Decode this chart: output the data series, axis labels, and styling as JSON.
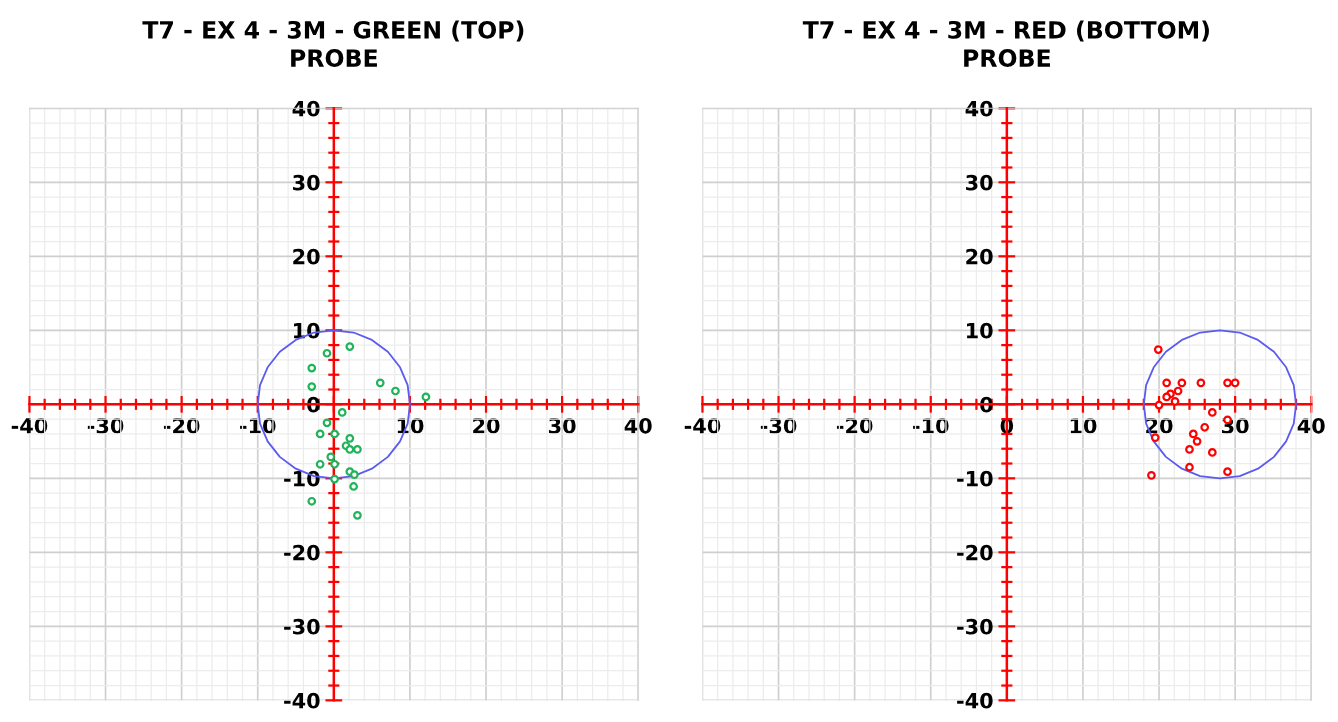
{
  "chart_data": [
    {
      "type": "scatter",
      "title": "T7 - EX 4 - 3M - GREEN (TOP)\nPROBE",
      "xlim": [
        -40,
        40
      ],
      "ylim": [
        -40,
        40
      ],
      "xticks": [
        -40,
        -30,
        -20,
        -10,
        {
          "value": 0,
          "label": null
        },
        10,
        20,
        30,
        40
      ],
      "yticks": [
        -40,
        -30,
        -20,
        -10,
        0,
        10,
        20,
        30,
        40
      ],
      "grid": true,
      "marker": "circle",
      "series": [
        {
          "type": "scatter",
          "color": "#1fb45a",
          "x": [
            2.1,
            -0.9,
            -2.9,
            -2.9,
            6.1,
            8.1,
            12.1,
            1.1,
            -0.9,
            -1.8,
            0.1,
            2.1,
            1.6,
            2.1,
            3.1,
            -0.4,
            -1.8,
            0.1,
            2.1,
            2.7,
            0.1,
            2.6,
            -2.9,
            3.1
          ],
          "values": [
            7.8,
            6.9,
            4.9,
            2.4,
            2.9,
            1.8,
            1.0,
            -1.1,
            -2.5,
            -4.0,
            -4.0,
            -4.6,
            -5.6,
            -6.1,
            -6.1,
            -7.1,
            -8.1,
            -8.1,
            -9.1,
            -9.5,
            -10.1,
            -11.1,
            -13.1,
            -15.0
          ]
        },
        {
          "type": "line",
          "color": "#5b5bf0",
          "marker": "none",
          "x": [
            10,
            9.7,
            8.7,
            7.1,
            5,
            2.6,
            0,
            -2.6,
            -5,
            -7.1,
            -8.7,
            -9.7,
            -10,
            -9.7,
            -8.7,
            -7.1,
            -5,
            -2.6,
            0,
            2.6,
            5,
            7.1,
            8.7,
            9.7,
            10
          ],
          "values": [
            0,
            2.6,
            5,
            7.1,
            8.7,
            9.7,
            10,
            9.7,
            8.7,
            7.1,
            5,
            2.6,
            0,
            -2.6,
            -5,
            -7.1,
            -8.7,
            -9.7,
            -10,
            -9.7,
            -8.7,
            -7.1,
            -5,
            -2.6,
            -0.1
          ]
        }
      ]
    },
    {
      "type": "scatter",
      "title": "T7 - EX 4 - 3M - RED (BOTTOM)\nPROBE",
      "xlim": [
        -40,
        40
      ],
      "ylim": [
        -40,
        40
      ],
      "xticks": [
        -40,
        -30,
        -20,
        -10,
        0,
        10,
        20,
        30,
        40
      ],
      "yticks": [
        -40,
        -30,
        -20,
        -10,
        0,
        10,
        20,
        30,
        40
      ],
      "grid": true,
      "marker": "circle",
      "series": [
        {
          "type": "scatter",
          "color": "#ff0000",
          "x": [
            19.9,
            21.0,
            23.0,
            25.5,
            29.0,
            30.0,
            22.5,
            21.5,
            21.0,
            22.1,
            20.0,
            27.0,
            29.0,
            26.0,
            24.5,
            25.0,
            24.0,
            27.0,
            24.0,
            29.0,
            19.0,
            19.5
          ],
          "values": [
            7.4,
            2.9,
            2.9,
            2.9,
            2.9,
            2.9,
            1.8,
            1.4,
            1.0,
            0.4,
            -0.1,
            -1.1,
            -2.1,
            -3.1,
            -4.0,
            -5.0,
            -6.1,
            -6.5,
            -8.5,
            -9.1,
            -9.6,
            -4.5
          ]
        },
        {
          "type": "line",
          "color": "#5b5bf0",
          "marker": "none",
          "x": [
            38,
            37.7,
            36.7,
            35.1,
            33,
            30.6,
            28,
            25.4,
            23,
            20.9,
            19.3,
            18.3,
            18,
            18.3,
            19.3,
            20.9,
            23,
            25.4,
            28,
            30.6,
            33,
            35.1,
            36.7,
            37.7,
            38
          ],
          "values": [
            0,
            2.6,
            5,
            7.1,
            8.7,
            9.7,
            10,
            9.7,
            8.7,
            7.1,
            5,
            2.6,
            0,
            -2.6,
            -5,
            -7.1,
            -8.7,
            -9.7,
            -10,
            -9.7,
            -8.7,
            -7.1,
            -5,
            -2.6,
            -0.1
          ]
        }
      ]
    }
  ]
}
